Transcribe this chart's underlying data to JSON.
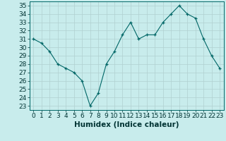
{
  "x": [
    0,
    1,
    2,
    3,
    4,
    5,
    6,
    7,
    8,
    9,
    10,
    11,
    12,
    13,
    14,
    15,
    16,
    17,
    18,
    19,
    20,
    21,
    22,
    23
  ],
  "y": [
    31,
    30.5,
    29.5,
    28,
    27.5,
    27,
    26,
    23,
    24.5,
    28,
    29.5,
    31.5,
    33,
    31,
    31.5,
    31.5,
    33,
    34,
    35,
    34,
    33.5,
    31,
    29,
    27.5
  ],
  "line_color": "#006666",
  "marker_color": "#006666",
  "bg_color": "#c8ecec",
  "grid_color": "#b0d0d0",
  "xlabel": "Humidex (Indice chaleur)",
  "ylim": [
    22.5,
    35.5
  ],
  "xlim": [
    -0.5,
    23.5
  ],
  "yticks": [
    23,
    24,
    25,
    26,
    27,
    28,
    29,
    30,
    31,
    32,
    33,
    34,
    35
  ],
  "xticks": [
    0,
    1,
    2,
    3,
    4,
    5,
    6,
    7,
    8,
    9,
    10,
    11,
    12,
    13,
    14,
    15,
    16,
    17,
    18,
    19,
    20,
    21,
    22,
    23
  ],
  "tick_fontsize": 6.5,
  "xlabel_fontsize": 7.5
}
